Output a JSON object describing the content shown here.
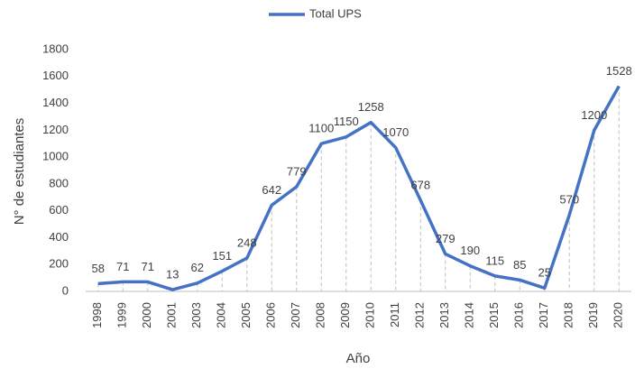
{
  "chart_data": {
    "type": "line",
    "x_label": "Año",
    "y_label": "N° de estudiantes",
    "categories": [
      "1998",
      "1999",
      "2000",
      "2001",
      "2003",
      "2004",
      "2005",
      "2006",
      "2007",
      "2008",
      "2009",
      "2010",
      "2011",
      "2012",
      "2013",
      "2014",
      "2015",
      "2016",
      "2017",
      "2018",
      "2019",
      "2020"
    ],
    "series": [
      {
        "name": "Total UPS",
        "color": "#4472c4",
        "values": [
          58,
          71,
          71,
          13,
          62,
          151,
          248,
          642,
          779,
          1100,
          1150,
          1258,
          1070,
          678,
          279,
          190,
          115,
          85,
          25,
          570,
          1200,
          1528
        ]
      }
    ],
    "ylim": [
      0,
      1800
    ],
    "yticks": [
      0,
      200,
      400,
      600,
      800,
      1000,
      1200,
      1400,
      1600,
      1800
    ],
    "grid": false,
    "legend": "top"
  }
}
